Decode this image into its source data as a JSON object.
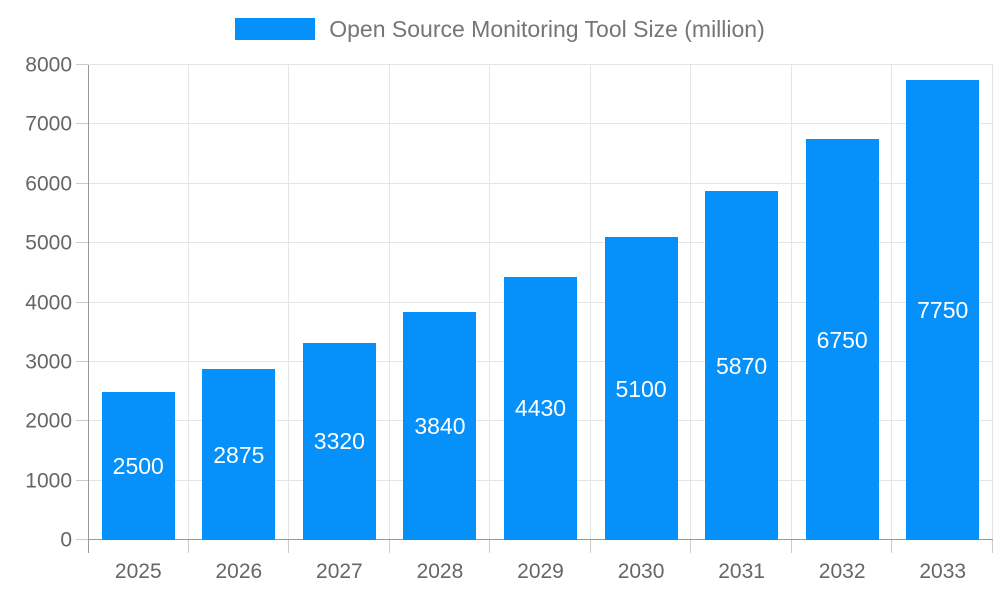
{
  "chart_data": {
    "type": "bar",
    "title": "Open Source Monitoring Tool Size (million)",
    "legend": {
      "label": "Open Source Monitoring Tool Size (million)",
      "position": "top"
    },
    "categories": [
      "2025",
      "2026",
      "2027",
      "2028",
      "2029",
      "2030",
      "2031",
      "2032",
      "2033"
    ],
    "series": [
      {
        "name": "Open Source Monitoring Tool Size (million)",
        "values": [
          2500,
          2875,
          3320,
          3840,
          4430,
          5100,
          5870,
          6750,
          7750
        ]
      }
    ],
    "bar_labels": [
      "2500",
      "2875",
      "3320",
      "3840",
      "4430",
      "5100",
      "5870",
      "6750",
      "7750"
    ],
    "xlabel": "",
    "ylabel": "",
    "ylim": [
      0,
      8000
    ],
    "yticks": [
      0,
      1000,
      2000,
      3000,
      4000,
      5000,
      6000,
      7000,
      8000
    ],
    "grid": true,
    "colors": {
      "bar": "#0590fa",
      "bar_label": "#ffffff",
      "axis_label": "#666666",
      "title": "#757575",
      "gridline": "#e5e5e5",
      "tick": "#cccccc",
      "axis_line": "#999999",
      "background": "#ffffff"
    }
  }
}
